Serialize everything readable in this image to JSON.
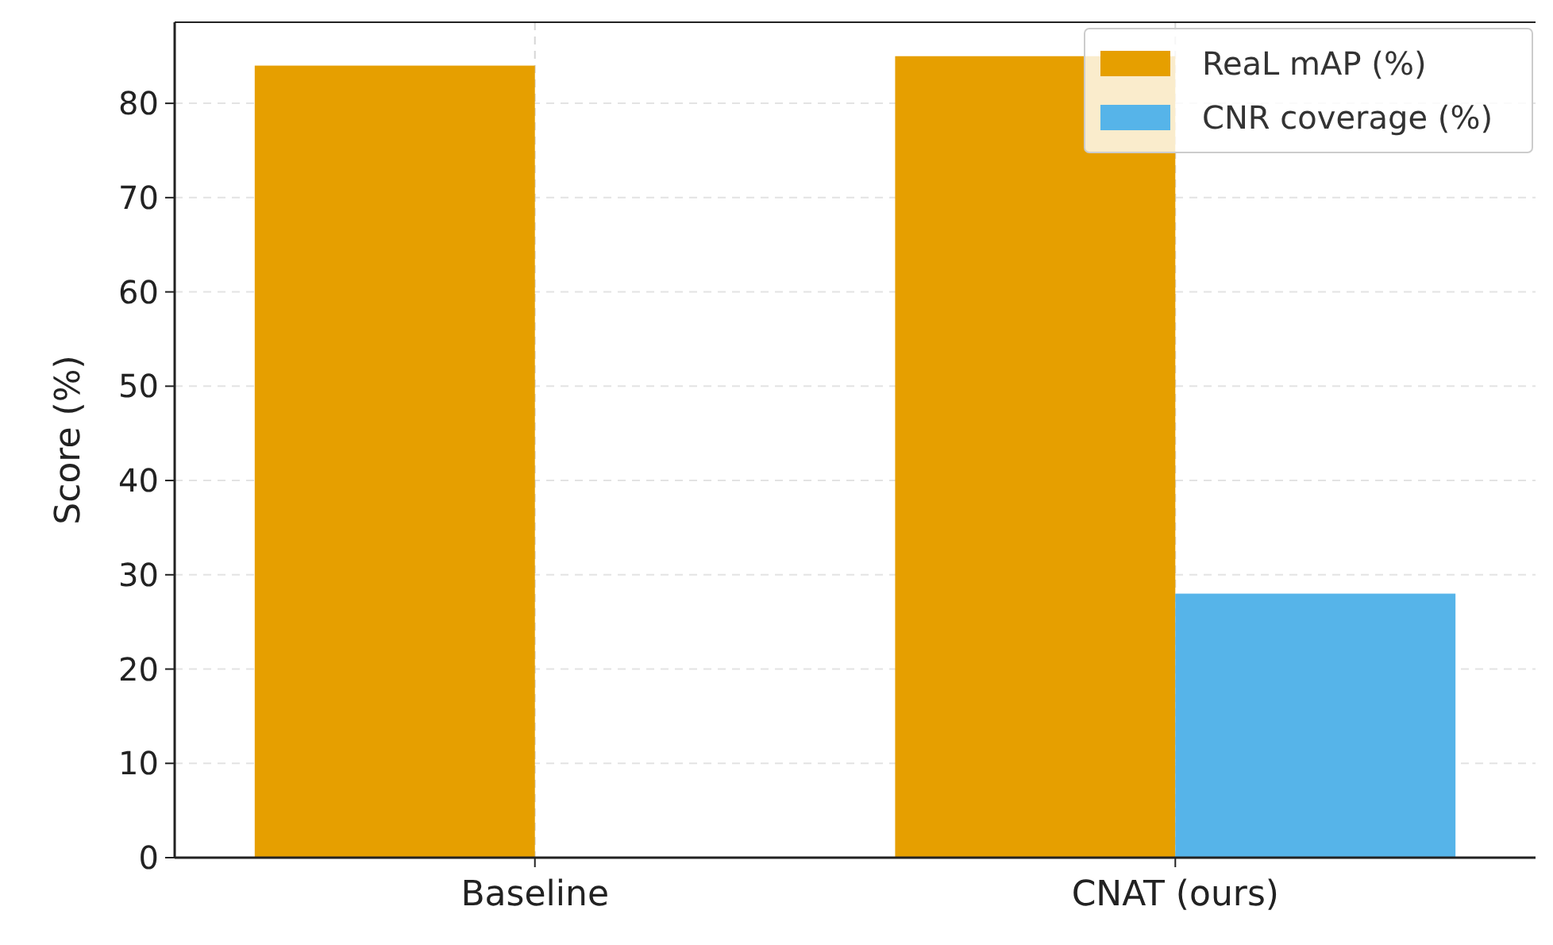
{
  "chart_data": {
    "type": "bar",
    "ylabel": "Score (%)",
    "categories": [
      "Baseline",
      "CNAT (ours)"
    ],
    "series": [
      {
        "name": "ReaL mAP (%)",
        "color": "#e69f00",
        "values": [
          84,
          85
        ]
      },
      {
        "name": "CNR coverage (%)",
        "color": "#56b4e9",
        "values": [
          null,
          28
        ]
      }
    ],
    "ylim": [
      0,
      88.6
    ],
    "yticks": [
      0,
      10,
      20,
      30,
      40,
      50,
      60,
      70,
      80
    ],
    "grid": true,
    "legend": "top right"
  }
}
